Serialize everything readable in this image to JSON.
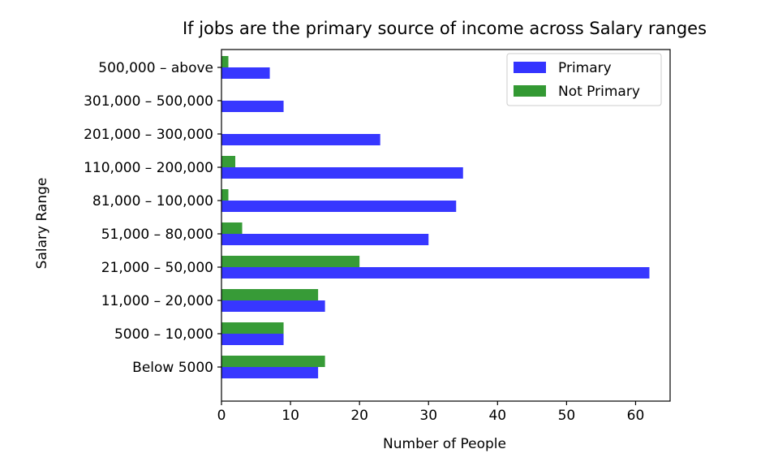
{
  "chart_data": {
    "type": "bar",
    "orientation": "horizontal",
    "title": "If jobs are the primary source of income  across Salary ranges",
    "xlabel": "Number of People",
    "ylabel": "Salary Range",
    "categories": [
      "Below 5000",
      "5000 – 10,000",
      "11,000 – 20,000",
      "21,000 – 50,000",
      "51,000 – 80,000",
      "81,000 – 100,000",
      "110,000 – 200,000",
      "201,000 – 300,000",
      "301,000 – 500,000",
      "500,000 – above"
    ],
    "series": [
      {
        "name": "Primary",
        "color": "#3333ff",
        "values": [
          14,
          9,
          15,
          62,
          30,
          34,
          35,
          23,
          9,
          7
        ]
      },
      {
        "name": "Not Primary",
        "color": "#339933",
        "values": [
          15,
          9,
          14,
          20,
          3,
          1,
          2,
          0,
          0,
          1
        ]
      }
    ],
    "xlim": [
      0,
      65
    ],
    "xticks": [
      0,
      10,
      20,
      30,
      40,
      50,
      60
    ],
    "grid": false,
    "legend_position": "top-right"
  }
}
